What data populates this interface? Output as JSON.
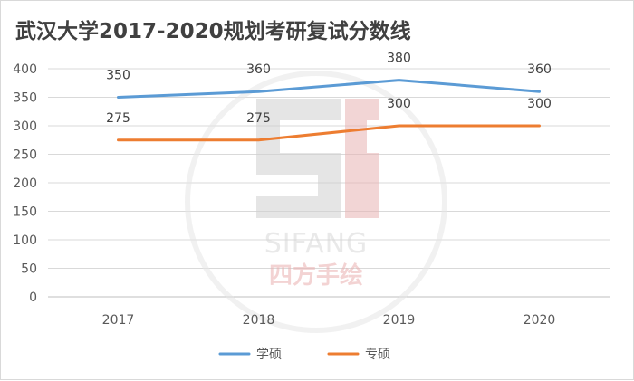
{
  "chart_data": {
    "type": "line",
    "title": "武汉大学2017-2020规划考研复试分数线",
    "categories": [
      "2017",
      "2018",
      "2019",
      "2020"
    ],
    "ylim": [
      0,
      400
    ],
    "yticks": [
      0,
      50,
      100,
      150,
      200,
      250,
      300,
      350,
      400
    ],
    "grid": true,
    "legend_position": "bottom",
    "series": [
      {
        "name": "学硕",
        "values": [
          350,
          360,
          380,
          360
        ],
        "color": "#5b9bd5"
      },
      {
        "name": "专硕",
        "values": [
          275,
          275,
          300,
          300
        ],
        "color": "#ed7d31"
      }
    ]
  },
  "watermark": {
    "brand_en": "SIFANG",
    "brand_cn": "四方手绘"
  }
}
